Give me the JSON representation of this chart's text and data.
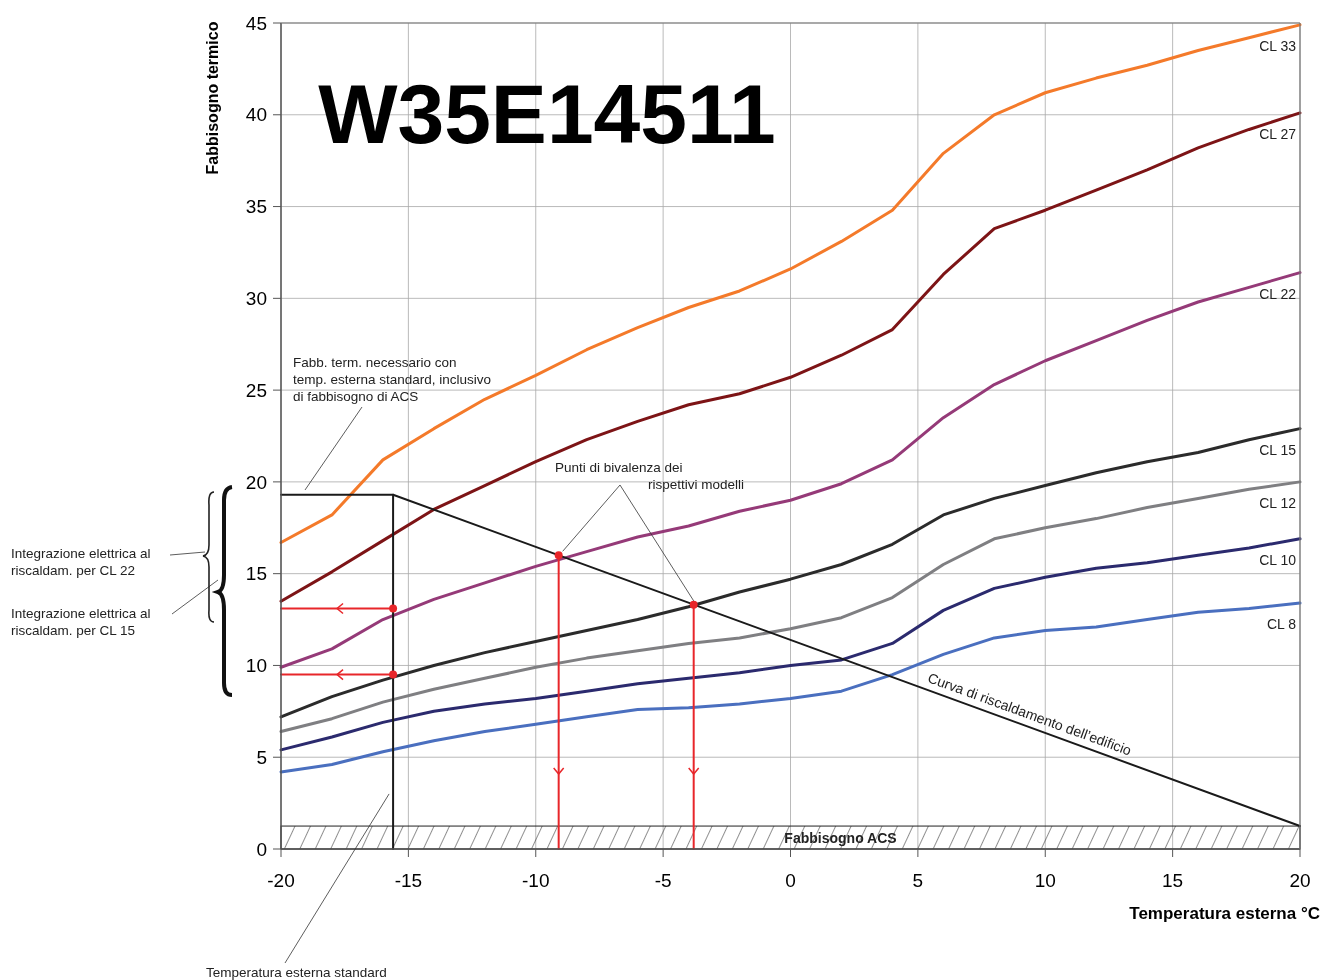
{
  "chart_data": {
    "type": "line",
    "title": "W35E14511",
    "xlabel": "Temperatura esterna °C",
    "ylabel": "Fabbisogno termico",
    "x": [
      -20,
      -18,
      -16,
      -14,
      -12,
      -10,
      -8,
      -6,
      -4,
      -2,
      0,
      2,
      4,
      6,
      8,
      10,
      12,
      14,
      16,
      18,
      20
    ],
    "xlim": [
      -20,
      20
    ],
    "xticks": [
      -20,
      -15,
      -10,
      -5,
      0,
      5,
      10,
      15,
      20
    ],
    "ylim": [
      0,
      45
    ],
    "yticks": [
      0,
      5,
      10,
      15,
      20,
      25,
      30,
      35,
      40,
      45
    ],
    "grid": true,
    "marker": "none",
    "line_style": "solid",
    "series": [
      {
        "name": "CL 33",
        "color": "#f47a2a",
        "values": [
          16.7,
          18.2,
          21.2,
          22.9,
          24.5,
          25.8,
          27.2,
          28.4,
          29.5,
          30.4,
          31.6,
          33.1,
          34.8,
          37.9,
          40.0,
          41.2,
          42.0,
          42.7,
          43.5,
          44.2,
          44.9
        ]
      },
      {
        "name": "CL 27",
        "color": "#7d1416",
        "values": [
          13.5,
          15.1,
          16.8,
          18.5,
          19.8,
          21.1,
          22.3,
          23.3,
          24.2,
          24.8,
          25.7,
          26.9,
          28.3,
          31.3,
          33.8,
          34.8,
          35.9,
          37.0,
          38.2,
          39.2,
          40.1
        ]
      },
      {
        "name": "CL 22",
        "color": "#953a78",
        "values": [
          9.9,
          10.9,
          12.5,
          13.6,
          14.5,
          15.4,
          16.2,
          17.0,
          17.6,
          18.4,
          19.0,
          19.9,
          21.2,
          23.5,
          25.3,
          26.6,
          27.7,
          28.8,
          29.8,
          30.6,
          31.4
        ]
      },
      {
        "name": "CL 15",
        "color": "#2b2b2b",
        "values": [
          7.2,
          8.3,
          9.2,
          10.0,
          10.7,
          11.3,
          11.9,
          12.5,
          13.2,
          14.0,
          14.7,
          15.5,
          16.6,
          18.2,
          19.1,
          19.8,
          20.5,
          21.1,
          21.6,
          22.3,
          22.9
        ]
      },
      {
        "name": "CL 12",
        "color": "#7f7f82",
        "values": [
          6.4,
          7.1,
          8.0,
          8.7,
          9.3,
          9.9,
          10.4,
          10.8,
          11.2,
          11.5,
          12.0,
          12.6,
          13.7,
          15.5,
          16.9,
          17.5,
          18.0,
          18.6,
          19.1,
          19.6,
          20.0
        ]
      },
      {
        "name": "CL 10",
        "color": "#2b2a6e",
        "values": [
          5.4,
          6.1,
          6.9,
          7.5,
          7.9,
          8.2,
          8.6,
          9.0,
          9.3,
          9.6,
          10.0,
          10.3,
          11.2,
          13.0,
          14.2,
          14.8,
          15.3,
          15.6,
          16.0,
          16.4,
          16.9
        ]
      },
      {
        "name": "CL 8",
        "color": "#4a6fbf",
        "values": [
          4.2,
          4.6,
          5.3,
          5.9,
          6.4,
          6.8,
          7.2,
          7.6,
          7.7,
          7.9,
          8.2,
          8.6,
          9.5,
          10.6,
          11.5,
          11.9,
          12.1,
          12.5,
          12.9,
          13.1,
          13.4
        ]
      },
      {
        "name": "Curva di riscaldamento dell’edificio",
        "color": "#1a1a1a",
        "x": [
          -20,
          -15.6,
          20
        ],
        "values": [
          19.3,
          19.3,
          1.25
        ]
      },
      {
        "color": "#1a1a1a",
        "x": [
          -15.6,
          -15.6
        ],
        "values": [
          0,
          19.3
        ]
      },
      {
        "color": "#e8262a",
        "x": [
          -20,
          -15.6
        ],
        "values": [
          13.1,
          13.1
        ]
      },
      {
        "color": "#e8262a",
        "x": [
          -20,
          -15.6
        ],
        "values": [
          9.5,
          9.5
        ]
      },
      {
        "color": "#e8262a",
        "x": [
          -9.1,
          -9.1
        ],
        "values": [
          0,
          16.0
        ]
      },
      {
        "color": "#e8262a",
        "x": [
          -3.8,
          -3.8
        ],
        "values": [
          0,
          13.3
        ]
      },
      {
        "type": "scatter",
        "marker": "circle",
        "color": "#e8262a",
        "x": [
          -15.6,
          -15.6,
          -9.1,
          -3.8
        ],
        "values": [
          13.1,
          9.5,
          16.0,
          13.3
        ]
      }
    ],
    "bands": [
      {
        "axis": "y",
        "from": 0,
        "to": 1.25,
        "label": "Fabbisogno ACS",
        "color": "#222222"
      }
    ],
    "annotations": [
      "Fabb. term. necessario con\ntemp. esterna standard, inclusivo\ndi fabbisogno di ACS",
      "Punti di bivalenza dei\nrispettivi modelli",
      "Integrazione elettrica al\nriscaldam. per CL 22",
      "Integrazione elettrica al\nriscaldam. per CL 15",
      {
        "text": "Temperatura esterna standard",
        "x": -15.6,
        "y": 3
      }
    ]
  }
}
